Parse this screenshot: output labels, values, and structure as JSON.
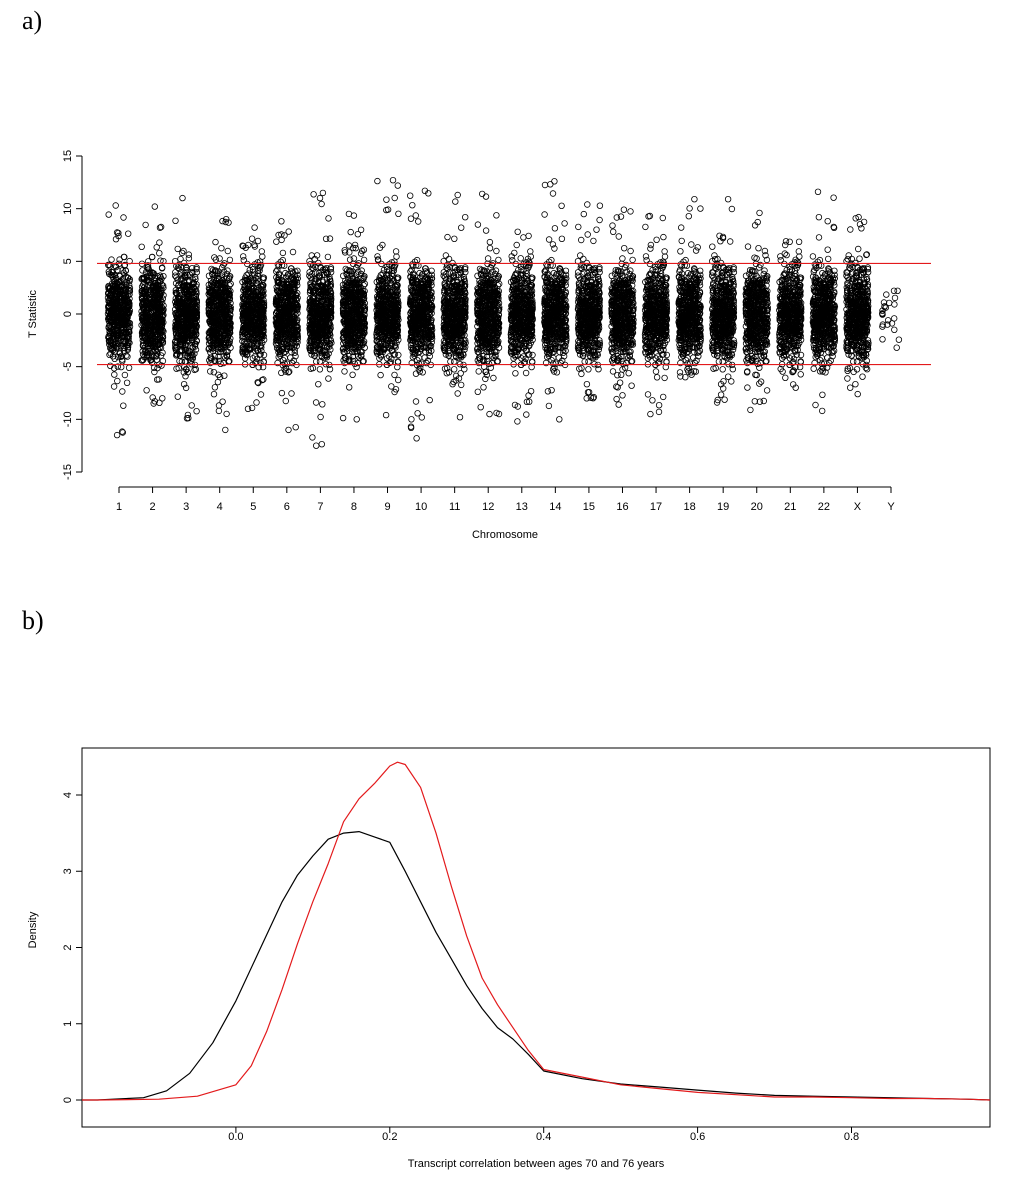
{
  "panels": {
    "a_label": "a)",
    "b_label": "b)"
  },
  "chart_data": [
    {
      "type": "scatter",
      "title": "",
      "xlabel": "Chromosome",
      "ylabel": "T Statistic",
      "categories": [
        "1",
        "2",
        "3",
        "4",
        "5",
        "6",
        "7",
        "8",
        "9",
        "10",
        "11",
        "12",
        "13",
        "14",
        "15",
        "16",
        "17",
        "18",
        "19",
        "20",
        "21",
        "22",
        "X",
        "Y"
      ],
      "ylim": [
        -15,
        15
      ],
      "yticks": [
        -15,
        -10,
        -5,
        0,
        5,
        10,
        15
      ],
      "threshold_lines": [
        4.8,
        -4.8
      ],
      "threshold_color": "#e31a1c",
      "point_color": "#000000",
      "series": [
        {
          "summary": "jittered transcript T statistics per chromosome",
          "y_range_by_category": {
            "1": [
              -11.5,
              10.3
            ],
            "2": [
              -8.5,
              10.2
            ],
            "3": [
              -9.9,
              11.0
            ],
            "4": [
              -11.0,
              9.0
            ],
            "5": [
              -9.0,
              8.2
            ],
            "6": [
              -11.0,
              8.8
            ],
            "7": [
              -12.5,
              11.5
            ],
            "8": [
              -10.0,
              9.5
            ],
            "9": [
              -9.6,
              12.7
            ],
            "10": [
              -11.8,
              11.7
            ],
            "11": [
              -9.8,
              11.3
            ],
            "12": [
              -9.5,
              11.4
            ],
            "13": [
              -10.2,
              7.8
            ],
            "14": [
              -10.0,
              12.6
            ],
            "15": [
              -8.0,
              10.4
            ],
            "16": [
              -8.6,
              9.9
            ],
            "17": [
              -9.5,
              9.3
            ],
            "18": [
              -6.0,
              10.9
            ],
            "19": [
              -8.4,
              10.9
            ],
            "20": [
              -9.1,
              9.6
            ],
            "21": [
              -7.0,
              6.9
            ],
            "22": [
              -9.2,
              11.6
            ],
            "X": [
              -7.6,
              9.2
            ],
            "Y": [
              -3.2,
              2.2
            ]
          }
        }
      ]
    },
    {
      "type": "line",
      "title": "",
      "xlabel": "Transcript correlation between ages 70 and 76 years",
      "ylabel": "Density",
      "xlim": [
        -0.2,
        0.98
      ],
      "ylim": [
        0,
        4.55
      ],
      "xticks": [
        0.0,
        0.2,
        0.4,
        0.6,
        0.8
      ],
      "xtick_labels": [
        "0.0",
        "0.2",
        "0.4",
        "0.6",
        "0.8"
      ],
      "yticks": [
        0,
        1,
        2,
        3,
        4
      ],
      "series": [
        {
          "color": "#000000",
          "x": [
            -0.18,
            -0.12,
            -0.09,
            -0.06,
            -0.03,
            0.0,
            0.03,
            0.06,
            0.08,
            0.1,
            0.12,
            0.14,
            0.16,
            0.18,
            0.2,
            0.22,
            0.24,
            0.26,
            0.28,
            0.3,
            0.32,
            0.34,
            0.36,
            0.38,
            0.4,
            0.45,
            0.5,
            0.55,
            0.6,
            0.65,
            0.7,
            0.75,
            0.8,
            0.85,
            0.9,
            0.95
          ],
          "y": [
            0.0,
            0.03,
            0.12,
            0.35,
            0.75,
            1.3,
            1.95,
            2.6,
            2.95,
            3.2,
            3.42,
            3.5,
            3.52,
            3.45,
            3.38,
            3.0,
            2.6,
            2.2,
            1.85,
            1.5,
            1.2,
            0.95,
            0.8,
            0.6,
            0.38,
            0.28,
            0.21,
            0.17,
            0.13,
            0.09,
            0.06,
            0.05,
            0.04,
            0.03,
            0.02,
            0.01
          ]
        },
        {
          "color": "#e31a1c",
          "x": [
            -0.18,
            -0.1,
            -0.05,
            0.0,
            0.02,
            0.04,
            0.06,
            0.08,
            0.1,
            0.12,
            0.14,
            0.16,
            0.18,
            0.2,
            0.21,
            0.22,
            0.24,
            0.26,
            0.28,
            0.3,
            0.32,
            0.34,
            0.36,
            0.38,
            0.4,
            0.45,
            0.5,
            0.55,
            0.6,
            0.65,
            0.7,
            0.75,
            0.8,
            0.85,
            0.9,
            0.95
          ],
          "y": [
            0.0,
            0.01,
            0.05,
            0.2,
            0.45,
            0.9,
            1.45,
            2.05,
            2.6,
            3.1,
            3.65,
            3.95,
            4.15,
            4.38,
            4.43,
            4.4,
            4.1,
            3.5,
            2.8,
            2.15,
            1.6,
            1.25,
            0.95,
            0.65,
            0.4,
            0.3,
            0.2,
            0.15,
            0.1,
            0.07,
            0.04,
            0.04,
            0.03,
            0.02,
            0.02,
            0.01
          ]
        }
      ]
    }
  ]
}
